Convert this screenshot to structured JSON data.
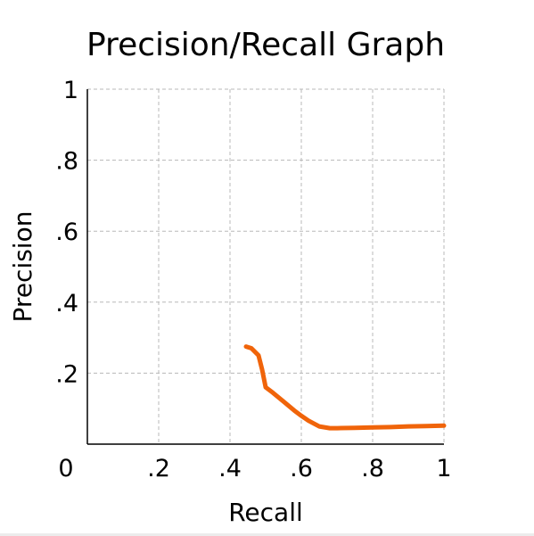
{
  "chart_data": {
    "type": "line",
    "title": "Precision/Recall Graph",
    "xlabel": "Recall",
    "ylabel": "Precision",
    "xlim": [
      0,
      1
    ],
    "ylim": [
      0,
      1
    ],
    "grid": true,
    "x_ticks": [
      {
        "value": 0,
        "label": "0"
      },
      {
        "value": 0.2,
        "label": ".2"
      },
      {
        "value": 0.4,
        "label": ".4"
      },
      {
        "value": 0.6,
        "label": ".6"
      },
      {
        "value": 0.8,
        "label": ".8"
      },
      {
        "value": 1,
        "label": "1"
      }
    ],
    "y_ticks": [
      {
        "value": 0.2,
        "label": ".2"
      },
      {
        "value": 0.4,
        "label": ".4"
      },
      {
        "value": 0.6,
        "label": ".6"
      },
      {
        "value": 0.8,
        "label": ".8"
      },
      {
        "value": 1,
        "label": "1"
      }
    ],
    "series": [
      {
        "color": "#f0640a",
        "x": [
          0.445,
          0.46,
          0.48,
          0.49,
          0.5,
          0.52,
          0.55,
          0.58,
          0.6,
          0.62,
          0.65,
          0.68,
          0.7,
          0.75,
          0.8,
          0.85,
          0.9,
          0.95,
          1.0
        ],
        "y": [
          0.275,
          0.27,
          0.25,
          0.21,
          0.16,
          0.145,
          0.12,
          0.095,
          0.08,
          0.066,
          0.05,
          0.045,
          0.045,
          0.046,
          0.047,
          0.048,
          0.05,
          0.051,
          0.052
        ]
      }
    ]
  }
}
